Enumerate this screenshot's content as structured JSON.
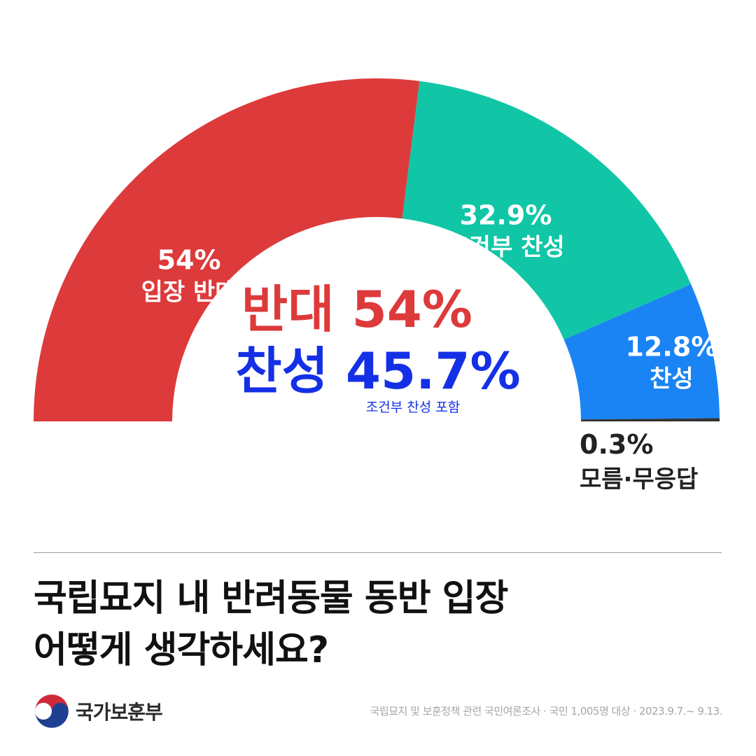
{
  "chart_data": {
    "type": "pie",
    "style": "half-donut",
    "slices": [
      {
        "label": "입장 반대",
        "value": 54,
        "display": "54%",
        "color": "#dd3a3b"
      },
      {
        "label": "조건부 찬성",
        "value": 32.9,
        "display": "32.9%",
        "color": "#10c6a6"
      },
      {
        "label": "찬성",
        "value": 12.8,
        "display": "12.8%",
        "color": "#1a84f5"
      },
      {
        "label": "모름·무응답",
        "value": 0.3,
        "display": "0.3%",
        "color": "#333333"
      }
    ],
    "center": {
      "oppose": "반대 54%",
      "oppose_color": "#dd3a3b",
      "support": "찬성 45.7%",
      "support_color": "#1430e6",
      "note": "조건부 찬성 포함"
    }
  },
  "question": {
    "line1": "국립묘지 내 반려동물 동반 입장",
    "line2": "어떻게 생각하세요?"
  },
  "footer": {
    "org_name": "국가보훈부",
    "source": "국립묘지 및 보훈정책 관련 국민여론조사 · 국민 1,005명 대상 · 2023.9.7.~ 9.13."
  }
}
